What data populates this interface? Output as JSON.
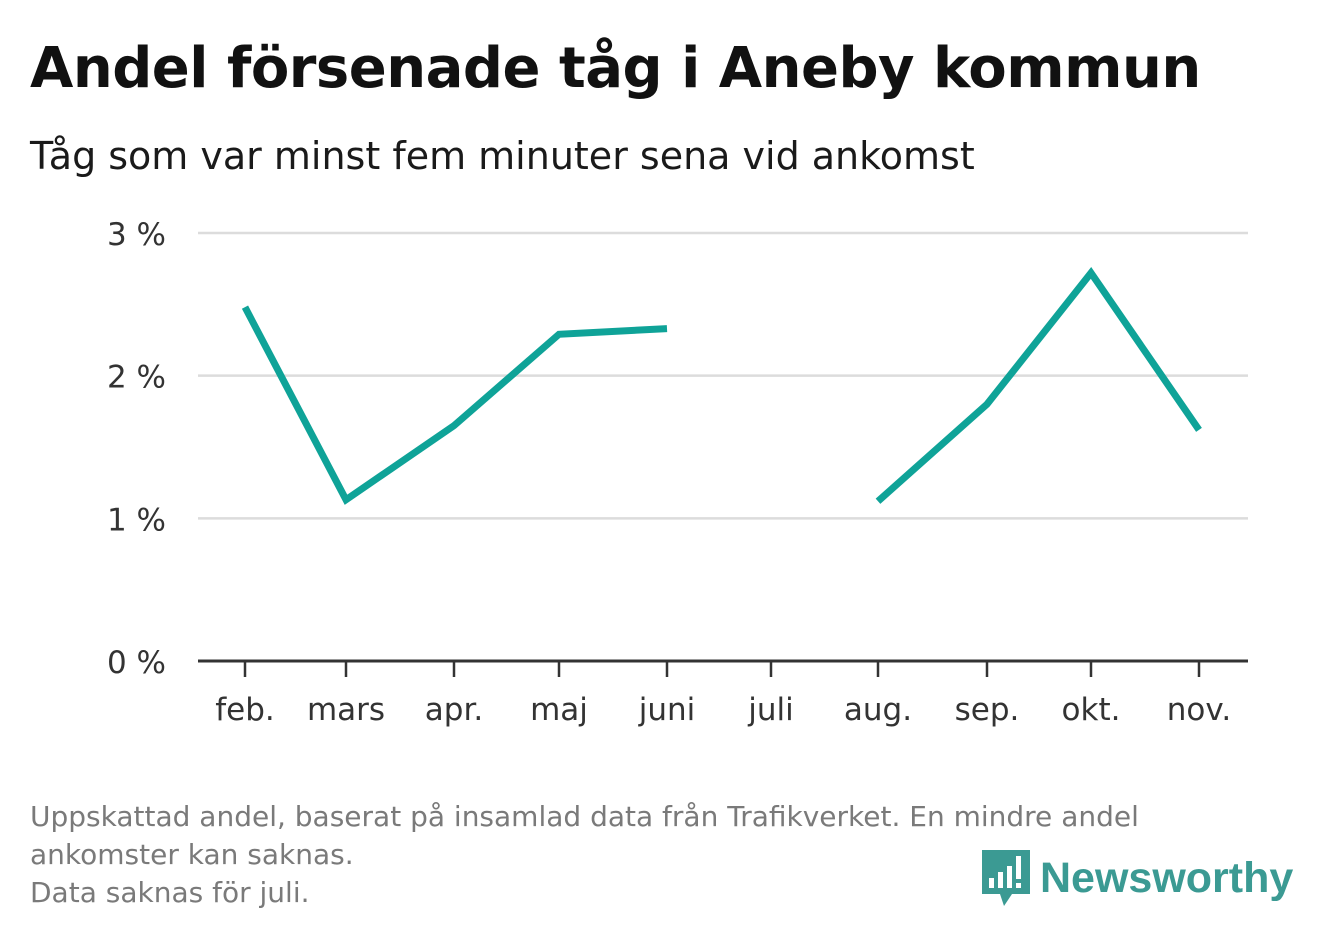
{
  "header": {
    "title": "Andel försenade tåg i Aneby kommun",
    "subtitle": "Tåg som var minst fem minuter sena vid ankomst"
  },
  "chart_data": {
    "type": "line",
    "title": "Andel försenade tåg i Aneby kommun",
    "subtitle": "Tåg som var minst fem minuter sena vid ankomst",
    "categories": [
      "feb.",
      "mars",
      "apr.",
      "maj",
      "juni",
      "juli",
      "aug.",
      "sep.",
      "okt.",
      "nov."
    ],
    "series": [
      {
        "values": [
          2.48,
          1.13,
          1.65,
          2.29,
          2.33,
          null,
          1.12,
          1.8,
          2.72,
          1.62
        ]
      }
    ],
    "ylim": [
      0,
      3
    ],
    "yticks": [
      {
        "value": 0,
        "label": "0 %"
      },
      {
        "value": 1,
        "label": "1 %"
      },
      {
        "value": 2,
        "label": "2 %"
      },
      {
        "value": 3,
        "label": "3 %"
      }
    ],
    "grid": true,
    "colors": {
      "line": "#0fa398",
      "grid": "#dcdcdc",
      "axis": "#333333"
    }
  },
  "footer": {
    "note_line1": "Uppskattad andel, baserat på insamlad data från Trafikverket. En mindre andel",
    "note_line2": "ankomster kan saknas.",
    "note_line3": "Data saknas för juli.",
    "logo_text": "Newsworthy",
    "logo_icon": "bar-chart-speech-bubble-icon"
  }
}
